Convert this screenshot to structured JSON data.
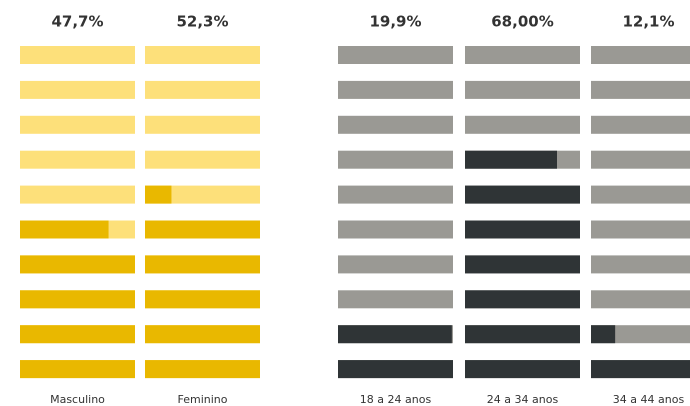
{
  "chart_data": [
    {
      "type": "waffle",
      "categories": [
        "Masculino",
        "Feminino"
      ],
      "values": [
        47.7,
        52.3
      ],
      "value_labels": [
        "47,7%",
        "52,3%"
      ],
      "color": "#e9b800",
      "track_color": "#fde07a"
    },
    {
      "type": "waffle",
      "categories": [
        "18 a 24 anos",
        "24 a 34 anos",
        "34 a 44 anos"
      ],
      "values": [
        19.9,
        68.0,
        12.1
      ],
      "value_labels": [
        "19,9%",
        "68,00%",
        "12,1%"
      ],
      "color": "#2f3436",
      "track_color": "#9a9994"
    }
  ]
}
